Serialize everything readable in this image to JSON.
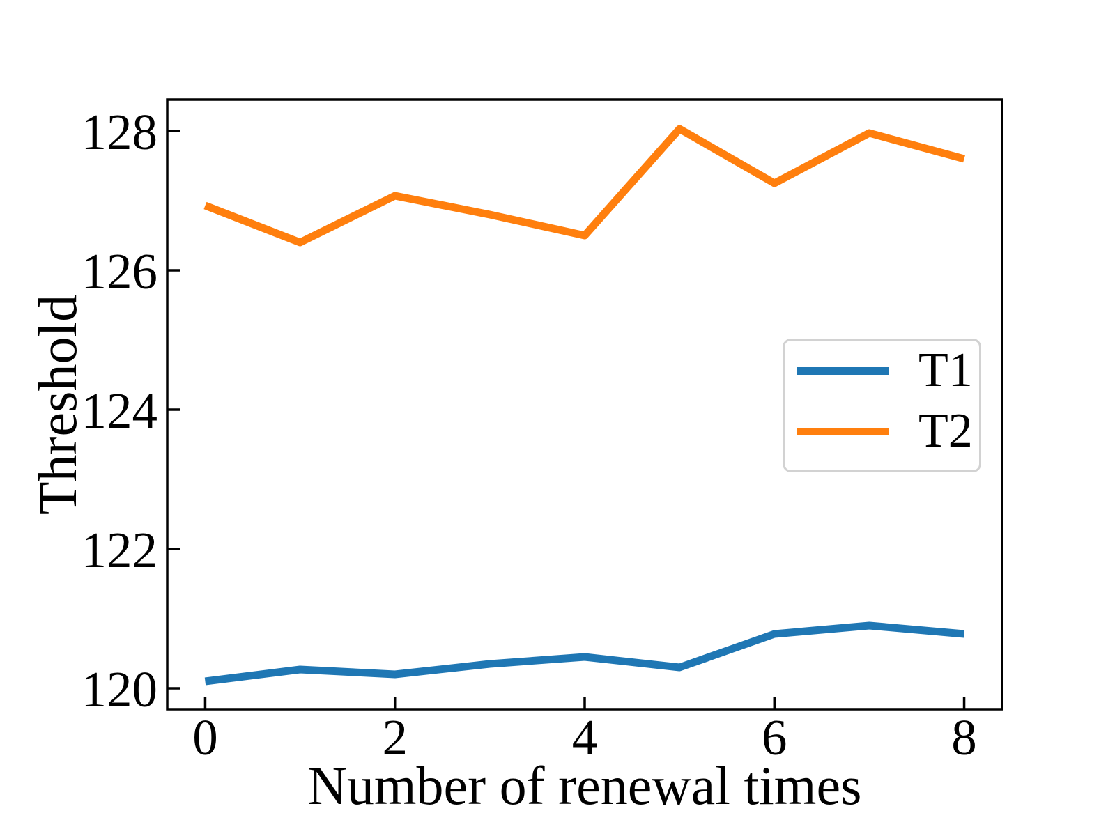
{
  "figure": {
    "background": "#ffffff"
  },
  "axes": {
    "xlabel": "Number of renewal times",
    "ylabel": "Threshold"
  },
  "legend": {
    "items": [
      {
        "label": "T1",
        "color": "#1f77b4"
      },
      {
        "label": "T2",
        "color": "#ff7f0e"
      }
    ],
    "border_color": "#d2d2d2",
    "background": "#ffffff"
  },
  "colors": {
    "spine": "#000000",
    "tick": "#000000",
    "text": "#000000",
    "series_t1": "#1f77b4",
    "series_t2": "#ff7f0e"
  },
  "chart_data": {
    "type": "line",
    "title": "",
    "xlabel": "Number of renewal times",
    "ylabel": "Threshold",
    "x": [
      0,
      1,
      2,
      3,
      4,
      5,
      6,
      7,
      8
    ],
    "series": [
      {
        "name": "T1",
        "color": "#1f77b4",
        "values": [
          120.1,
          120.27,
          120.2,
          120.35,
          120.45,
          120.3,
          120.78,
          120.9,
          120.78
        ]
      },
      {
        "name": "T2",
        "color": "#ff7f0e",
        "values": [
          126.93,
          126.4,
          127.07,
          126.8,
          126.5,
          128.03,
          127.25,
          127.97,
          127.6
        ]
      }
    ],
    "xlim": [
      -0.4,
      8.4
    ],
    "ylim": [
      119.7,
      128.45
    ],
    "xticks": [
      0,
      2,
      4,
      6,
      8
    ],
    "yticks": [
      120,
      122,
      124,
      126,
      128
    ],
    "tick_direction": "in",
    "grid": false,
    "legend_position": "center right",
    "line_width": 11
  }
}
